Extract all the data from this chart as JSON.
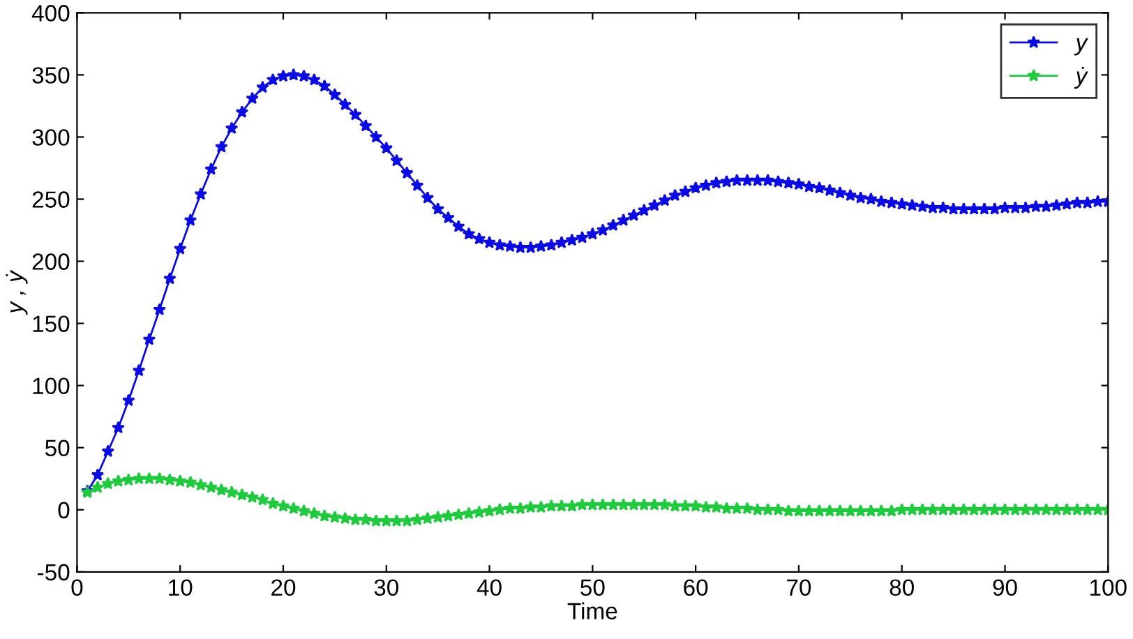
{
  "chart_data": {
    "type": "line",
    "xlabel": "Time",
    "ylabel": "y , ẏ",
    "xlim": [
      0,
      100
    ],
    "xticks": [
      0,
      10,
      20,
      30,
      40,
      50,
      60,
      70,
      80,
      90,
      100
    ],
    "ylim": [
      -50,
      400
    ],
    "yticks": [
      -50,
      0,
      50,
      100,
      150,
      200,
      250,
      300,
      350,
      400
    ],
    "grid": false,
    "legend": "top right",
    "marker": "star",
    "line_style": "solid",
    "x": [
      1,
      2,
      3,
      4,
      5,
      6,
      7,
      8,
      9,
      10,
      11,
      12,
      13,
      14,
      15,
      16,
      17,
      18,
      19,
      20,
      21,
      22,
      23,
      24,
      25,
      26,
      27,
      28,
      29,
      30,
      31,
      32,
      33,
      34,
      35,
      36,
      37,
      38,
      39,
      40,
      41,
      42,
      43,
      44,
      45,
      46,
      47,
      48,
      49,
      50,
      51,
      52,
      53,
      54,
      55,
      56,
      57,
      58,
      59,
      60,
      61,
      62,
      63,
      64,
      65,
      66,
      67,
      68,
      69,
      70,
      71,
      72,
      73,
      74,
      75,
      76,
      77,
      78,
      79,
      80,
      81,
      82,
      83,
      84,
      85,
      86,
      87,
      88,
      89,
      90,
      91,
      92,
      93,
      94,
      95,
      96,
      97,
      98,
      99,
      100
    ],
    "series": [
      {
        "name": "y",
        "color": "#0a0ae6",
        "values": [
          15,
          28,
          47,
          66,
          88,
          112,
          137,
          161,
          186,
          210,
          233,
          254,
          274,
          292,
          307,
          320,
          331,
          340,
          346,
          349,
          350,
          349,
          346,
          341,
          334,
          326,
          318,
          309,
          300,
          291,
          281,
          271,
          261,
          251,
          242,
          235,
          228,
          222,
          218,
          215,
          213,
          212,
          211,
          211,
          212,
          213,
          215,
          217,
          219,
          222,
          225,
          229,
          233,
          237,
          241,
          245,
          249,
          253,
          256,
          259,
          261,
          263,
          264,
          265,
          265,
          265,
          265,
          264,
          263,
          262,
          260,
          259,
          257,
          255,
          253,
          251,
          250,
          248,
          247,
          246,
          245,
          244,
          243,
          243,
          242,
          242,
          242,
          242,
          242,
          243,
          243,
          243,
          244,
          244,
          245,
          246,
          247,
          247,
          248,
          248
        ]
      },
      {
        "name": "ẏ",
        "color": "#1ecb3c",
        "values": [
          14,
          18,
          21,
          23,
          24,
          25,
          25,
          25,
          24,
          23,
          22,
          20,
          18,
          16,
          14,
          12,
          10,
          8,
          5,
          3,
          1,
          -1,
          -3,
          -5,
          -6,
          -7,
          -8,
          -8,
          -9,
          -9,
          -9,
          -9,
          -8,
          -7,
          -6,
          -5,
          -4,
          -3,
          -2,
          -1,
          0,
          1,
          1,
          2,
          2,
          3,
          3,
          3,
          4,
          4,
          4,
          4,
          4,
          4,
          4,
          4,
          4,
          3,
          3,
          3,
          2,
          2,
          1,
          1,
          1,
          0,
          0,
          0,
          -1,
          -1,
          -1,
          -1,
          -1,
          -1,
          -1,
          -1,
          -1,
          -1,
          -1,
          0,
          0,
          0,
          0,
          0,
          0,
          0,
          0,
          0,
          0,
          0,
          0,
          0,
          0,
          0,
          0,
          0,
          0,
          0,
          0,
          0
        ]
      }
    ]
  }
}
